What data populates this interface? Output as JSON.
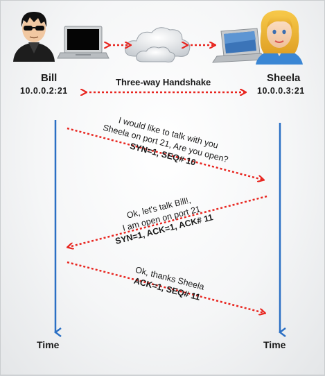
{
  "left_host": {
    "name": "Bill",
    "address": "10.0.0.2:21"
  },
  "right_host": {
    "name": "Sheela",
    "address": "10.0.0.3:21"
  },
  "handshake_label": "Three-way Handshake",
  "time_label": "Time",
  "messages": [
    {
      "line1": "I would like to talk with you",
      "line2": "Sheela on port 21, Are you open?",
      "flags": "SYN=1, SEQ# 10"
    },
    {
      "line1": "Ok, let's talk Bill!,",
      "line2": "I am open on port 21",
      "flags": "SYN=1, ACK=1, ACK# 11"
    },
    {
      "line1": "Ok, thanks Sheela",
      "flags": "ACK=1, SEQ# 11"
    }
  ],
  "colors": {
    "timeline": "#2a6fc4",
    "arrow": "#e8251f",
    "text": "#1a1a1a"
  },
  "icons": [
    "hacker-avatar-icon",
    "laptop-icon",
    "cloud-icon",
    "laptop-icon",
    "woman-avatar-icon"
  ]
}
